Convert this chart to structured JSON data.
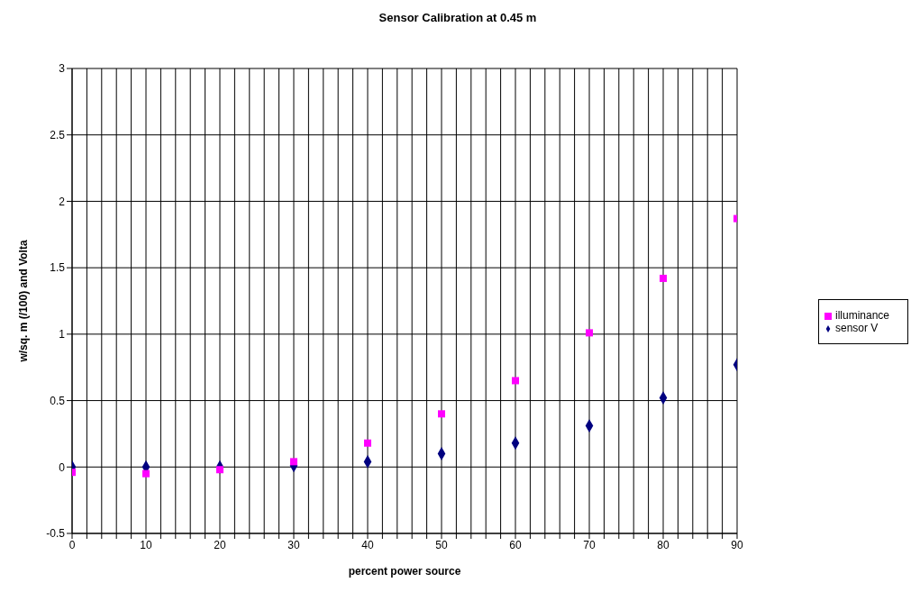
{
  "chart_data": {
    "type": "scatter",
    "title": "Sensor Calibration at 0.45 m",
    "xlabel": "percent power source",
    "ylabel": "w/sq. m (/100) and Volta",
    "x": [
      0,
      10,
      20,
      30,
      40,
      50,
      60,
      70,
      80,
      90
    ],
    "series": [
      {
        "name": "sensor V",
        "color": "#000080",
        "marker": "diamond",
        "values": [
          0,
          0,
          0,
          0.01,
          0.04,
          0.1,
          0.18,
          0.31,
          0.52,
          0.77
        ]
      },
      {
        "name": "illuminance",
        "color": "#ff00ff",
        "marker": "square",
        "values": [
          -0.04,
          -0.05,
          -0.02,
          0.04,
          0.18,
          0.4,
          0.65,
          1.01,
          1.42,
          1.87
        ]
      }
    ],
    "xlim": [
      0,
      90
    ],
    "xticks": [
      0,
      {
        "value": 2,
        "label": null
      },
      {
        "value": 4,
        "label": null
      },
      {
        "value": 6,
        "label": null
      },
      {
        "value": 8,
        "label": null
      },
      10,
      {
        "value": 12,
        "label": null
      },
      {
        "value": 14,
        "label": null
      },
      {
        "value": 16,
        "label": null
      },
      {
        "value": 18,
        "label": null
      },
      20,
      {
        "value": 22,
        "label": null
      },
      {
        "value": 24,
        "label": null
      },
      {
        "value": 26,
        "label": null
      },
      {
        "value": 28,
        "label": null
      },
      30,
      {
        "value": 32,
        "label": null
      },
      {
        "value": 34,
        "label": null
      },
      {
        "value": 36,
        "label": null
      },
      {
        "value": 38,
        "label": null
      },
      40,
      {
        "value": 42,
        "label": null
      },
      {
        "value": 44,
        "label": null
      },
      {
        "value": 46,
        "label": null
      },
      {
        "value": 48,
        "label": null
      },
      50,
      {
        "value": 52,
        "label": null
      },
      {
        "value": 54,
        "label": null
      },
      {
        "value": 56,
        "label": null
      },
      {
        "value": 58,
        "label": null
      },
      60,
      {
        "value": 62,
        "label": null
      },
      {
        "value": 64,
        "label": null
      },
      {
        "value": 66,
        "label": null
      },
      {
        "value": 68,
        "label": null
      },
      70,
      {
        "value": 72,
        "label": null
      },
      {
        "value": 74,
        "label": null
      },
      {
        "value": 76,
        "label": null
      },
      {
        "value": 78,
        "label": null
      },
      80,
      {
        "value": 82,
        "label": null
      },
      {
        "value": 84,
        "label": null
      },
      {
        "value": 86,
        "label": null
      },
      {
        "value": 88,
        "label": null
      },
      90
    ],
    "ylim": [
      -0.5,
      3
    ],
    "yticks": [
      -0.5,
      0,
      0.5,
      1,
      1.5,
      2,
      2.5,
      3
    ],
    "grid": true,
    "legend": "right"
  }
}
